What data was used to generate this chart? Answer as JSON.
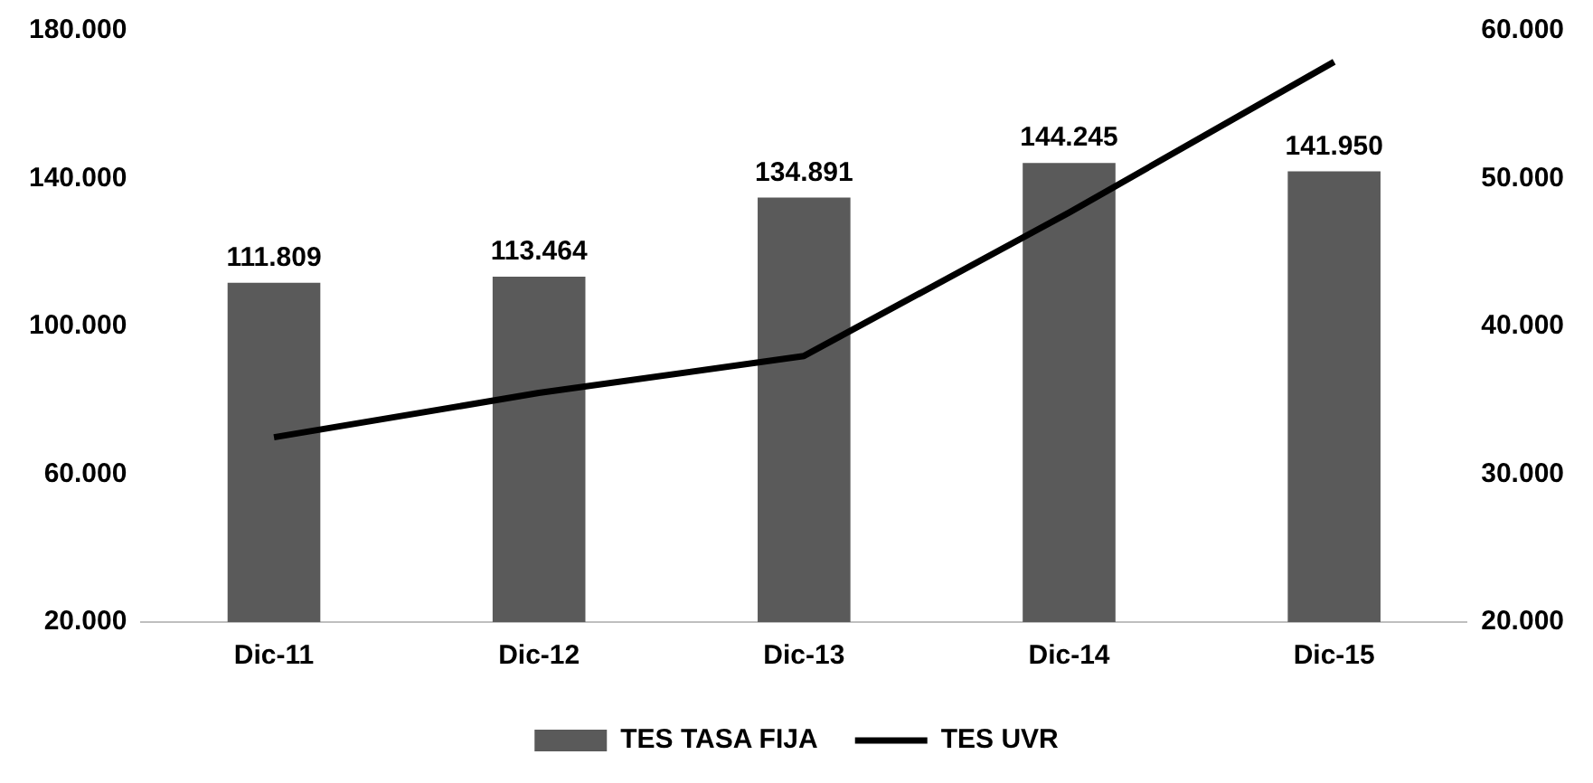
{
  "chart_data": {
    "type": "bar",
    "categories": [
      "Dic-11",
      "Dic-12",
      "Dic-13",
      "Dic-14",
      "Dic-15"
    ],
    "series": [
      {
        "name": "TES TASA FIJA",
        "color": "#5a5a5a",
        "values": [
          111809,
          113464,
          134891,
          144245,
          141950
        ],
        "value_labels": [
          "111.809",
          "113.464",
          "134.891",
          "144.245",
          "141.950"
        ]
      },
      {
        "name": "TES UVR",
        "type": "line",
        "axis": "y2",
        "color": "#000000",
        "values": [
          32500,
          35500,
          38000,
          47700,
          57900
        ]
      }
    ],
    "ylim": [
      20000,
      180000
    ],
    "yticks": [
      {
        "value": 20000,
        "label": "20.000"
      },
      {
        "value": 60000,
        "label": "60.000"
      },
      {
        "value": 100000,
        "label": "100.000"
      },
      {
        "value": 140000,
        "label": "140.000"
      },
      {
        "value": 180000,
        "label": "180.000"
      }
    ],
    "y2lim": [
      20000,
      60000
    ],
    "y2ticks": [
      {
        "value": 20000,
        "label": "20.000"
      },
      {
        "value": 30000,
        "label": "30.000"
      },
      {
        "value": 40000,
        "label": "40.000"
      },
      {
        "value": 50000,
        "label": "50.000"
      },
      {
        "value": 60000,
        "label": "60.000"
      }
    ],
    "grid": false,
    "legend": "bottom",
    "marker": "none",
    "line_style": "solid"
  }
}
